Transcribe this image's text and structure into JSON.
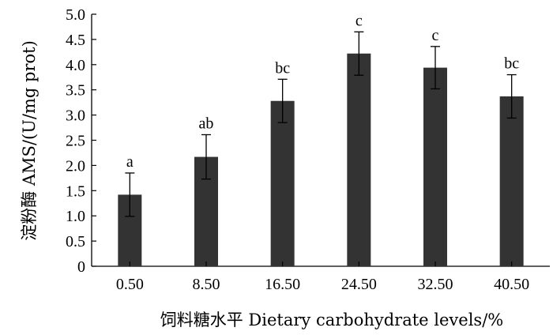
{
  "chart_data": {
    "type": "bar",
    "title": "",
    "xlabel": "饲料糖水平  Dietary carbohydrate levels/%",
    "ylabel": "淀粉酶  AMS/(U/mg prot)",
    "categories": [
      "0.50",
      "8.50",
      "16.50",
      "24.50",
      "32.50",
      "40.50"
    ],
    "series": [
      {
        "values": [
          1.42,
          2.17,
          3.28,
          4.22,
          3.94,
          3.37
        ],
        "errors": [
          0.43,
          0.44,
          0.43,
          0.43,
          0.42,
          0.43
        ],
        "labels": [
          "a",
          "ab",
          "bc",
          "c",
          "c",
          "bc"
        ],
        "color": "#333333"
      }
    ],
    "ylim": [
      0,
      5.0
    ],
    "yticks": [
      "0",
      "0.5",
      "1.0",
      "1.5",
      "2.0",
      "2.5",
      "3.0",
      "3.5",
      "4.0",
      "4.5",
      "5.0"
    ],
    "grid": false,
    "legend": "none"
  }
}
